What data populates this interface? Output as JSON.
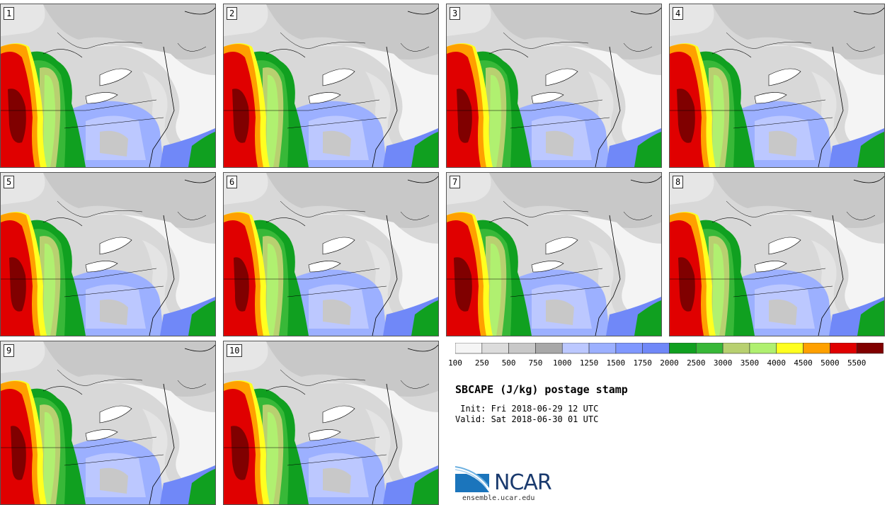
{
  "figure": {
    "title": "SBCAPE (J/kg) postage stamp",
    "init": " Init: Fri 2018-06-29 12 UTC",
    "valid": "Valid: Sat 2018-06-30 01 UTC",
    "website": "ensemble.ucar.edu",
    "logo_text": "NCAR"
  },
  "panels": [
    {
      "label": "1"
    },
    {
      "label": "2"
    },
    {
      "label": "3"
    },
    {
      "label": "4"
    },
    {
      "label": "5"
    },
    {
      "label": "6"
    },
    {
      "label": "7"
    },
    {
      "label": "8"
    },
    {
      "label": "9"
    },
    {
      "label": "10"
    }
  ],
  "colorbar": {
    "units": "J/kg",
    "ticks": [
      "100",
      "250",
      "500",
      "750",
      "1000",
      "1250",
      "1500",
      "1750",
      "2000",
      "2500",
      "3000",
      "3500",
      "4000",
      "4500",
      "5000",
      "5500"
    ],
    "colors": [
      "#f5f5f5",
      "#dcdcdc",
      "#c8c8c8",
      "#a8a8a8",
      "#bcc8ff",
      "#9cb0ff",
      "#8098ff",
      "#7088f8",
      "#10a020",
      "#38b838",
      "#b8d070",
      "#b0f070",
      "#ffff20",
      "#ffa000",
      "#e00000",
      "#800000"
    ]
  },
  "colors": {
    "ncar_blue": "#1a3a6e",
    "logo_swoosh": "#1b75bc"
  }
}
